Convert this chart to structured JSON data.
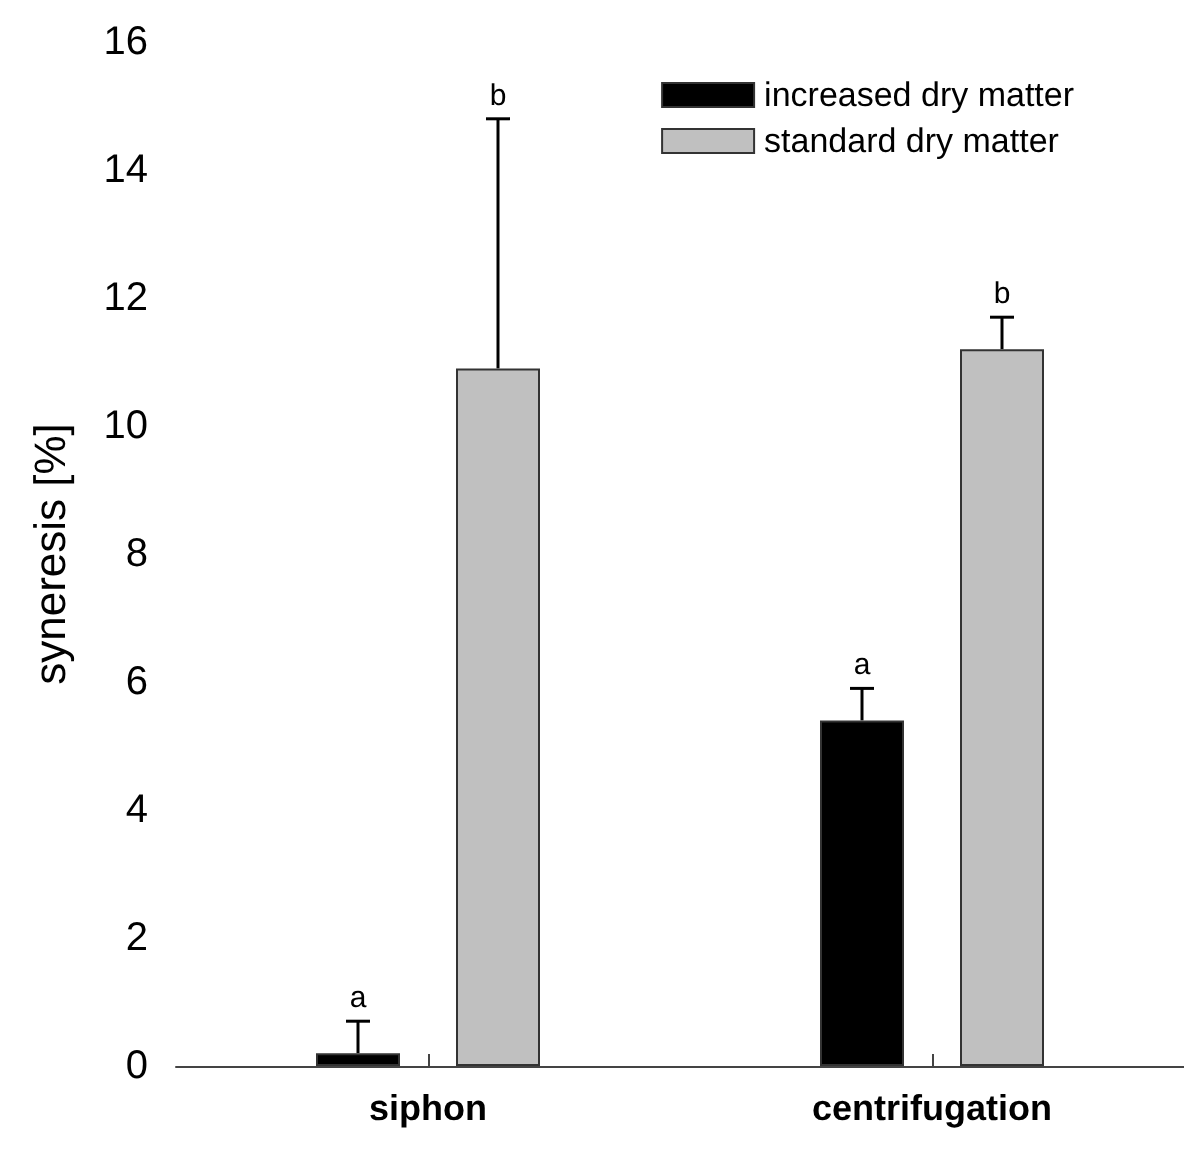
{
  "chart_data": {
    "type": "bar",
    "ylabel": "syneresis [%]",
    "categories": [
      "siphon",
      "centrifugation"
    ],
    "series": [
      {
        "name": "increased dry matter",
        "color": "#000000",
        "values": [
          0.2,
          5.4
        ],
        "errors": [
          [
            0.2,
            0.7
          ],
          [
            5.4,
            5.9
          ]
        ]
      },
      {
        "name": "standard dry matter",
        "color": "#c0c0c0",
        "values": [
          10.9,
          11.2
        ],
        "errors": [
          [
            10.9,
            14.8
          ],
          [
            11.2,
            11.7
          ]
        ]
      }
    ],
    "ylim": [
      0,
      16
    ],
    "yticks": [
      0,
      2,
      4,
      6,
      8,
      10,
      12,
      14,
      16
    ],
    "grid": false,
    "legend": "top right",
    "annotations": [
      "a",
      "b",
      "a",
      "b"
    ]
  }
}
